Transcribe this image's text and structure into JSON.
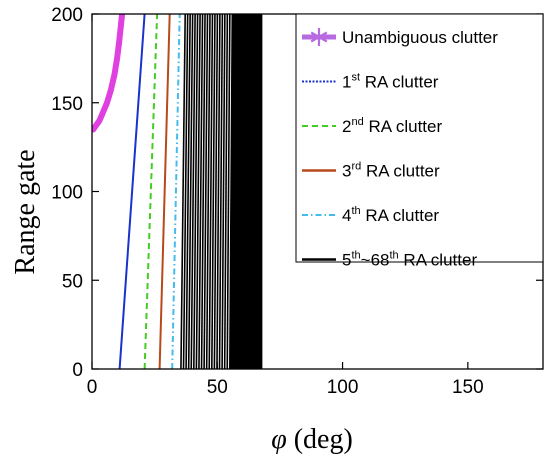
{
  "chart_data": {
    "type": "line",
    "xlabel_symbol": "φ",
    "xlabel_unit": "(deg)",
    "ylabel": "Range gate",
    "xlim": [
      0,
      180
    ],
    "ylim": [
      0,
      200
    ],
    "x_ticks": [
      0,
      50,
      100,
      150
    ],
    "y_ticks": [
      0,
      50,
      100,
      150,
      200
    ],
    "grid": false,
    "legend_position": "top-right",
    "colors": {
      "unambiguous": "#e040e0",
      "ra1": "#1a33cc",
      "ra2": "#44cc22",
      "ra3": "#b84a1a",
      "ra4": "#44bbee",
      "ra5_68": "#000000",
      "legend_marker_unambiguous": "#b86be0"
    },
    "series": [
      {
        "name": "Unambiguous clutter",
        "key": "unambiguous",
        "style": "thick",
        "points": [
          [
            0.5,
            135
          ],
          [
            1.5,
            137
          ],
          [
            3,
            140
          ],
          [
            4.5,
            145
          ],
          [
            6,
            150
          ],
          [
            7.5,
            157
          ],
          [
            9,
            166
          ],
          [
            10,
            175
          ],
          [
            10.8,
            184
          ],
          [
            11.5,
            193
          ],
          [
            12,
            200
          ]
        ]
      },
      {
        "name": "1st RA clutter",
        "key": "ra1",
        "style": "solid",
        "points": [
          [
            11,
            0
          ],
          [
            21,
            200
          ]
        ]
      },
      {
        "name": "2nd RA clutter",
        "key": "ra2",
        "style": "dashed",
        "points": [
          [
            21,
            0
          ],
          [
            26,
            200
          ]
        ]
      },
      {
        "name": "3rd RA clutter",
        "key": "ra3",
        "style": "solid",
        "points": [
          [
            27,
            0
          ],
          [
            31,
            200
          ]
        ]
      },
      {
        "name": "4th RA clutter",
        "key": "ra4",
        "style": "dashdot",
        "points": [
          [
            32,
            0
          ],
          [
            35,
            200
          ]
        ]
      },
      {
        "name": "5th~68th RA clutter",
        "key": "ra5_68",
        "style": "solid",
        "band_x_start": [
          35.5,
          37.2
        ],
        "band_x_end": [
          55,
          56
        ],
        "dense_x_end": [
          68,
          68
        ]
      }
    ]
  },
  "legend": {
    "entries": [
      {
        "key": "unambiguous",
        "main": "Unambiguous clutter",
        "sup": "",
        "after": ""
      },
      {
        "key": "ra1",
        "main": "1",
        "sup": "st",
        "after": " RA clutter"
      },
      {
        "key": "ra2",
        "main": "2",
        "sup": "nd",
        "after": " RA clutter"
      },
      {
        "key": "ra3",
        "main": "3",
        "sup": "rd",
        "after": " RA clutter"
      },
      {
        "key": "ra4",
        "main": "4",
        "sup": "th",
        "after": " RA clutter"
      },
      {
        "key": "ra5_68",
        "main": "5",
        "sup": "th",
        "mid": "~68",
        "sup2": "th",
        "after": " RA clutter"
      }
    ]
  }
}
